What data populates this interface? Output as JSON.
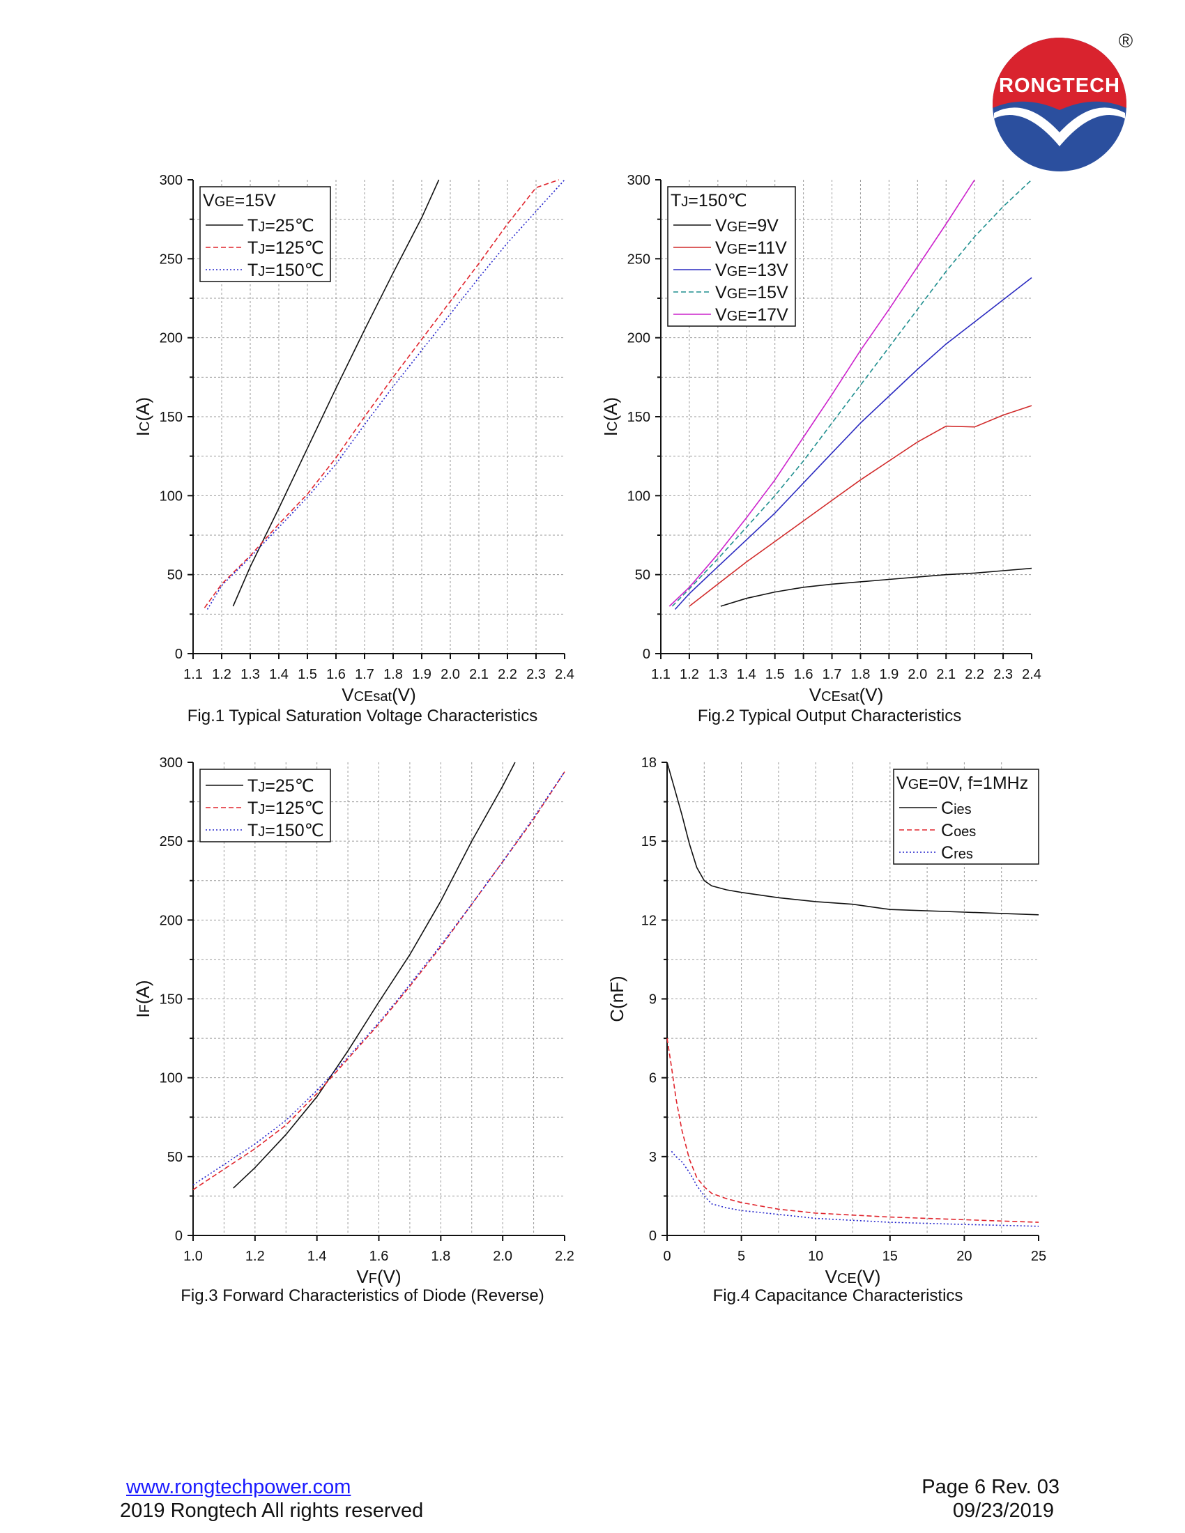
{
  "logo": {
    "text": "RONGTECH",
    "registered": "®",
    "colors": {
      "red": "#d9232e",
      "blue": "#2b4f9e"
    }
  },
  "footer": {
    "website": "www.rongtechpower.com",
    "copyright": "2019 Rongtech All rights reserved",
    "page": "Page 6  Rev. 03",
    "date": "09/23/2019"
  },
  "chart_data": [
    {
      "type": "line",
      "caption": "Fig.1 Typical Saturation Voltage Characteristics",
      "xlabel": {
        "main": "V",
        "sub": "CEsat",
        "unit": "(V)"
      },
      "ylabel": {
        "main": "I",
        "sub": "C",
        "unit": "(A)"
      },
      "xlim": [
        1.1,
        2.4
      ],
      "ylim": [
        0,
        300
      ],
      "xticks": [
        1.1,
        1.2,
        1.3,
        1.4,
        1.5,
        1.6,
        1.7,
        1.8,
        1.9,
        2.0,
        2.1,
        2.2,
        2.3,
        2.4
      ],
      "xtick_labels": [
        "1.1",
        "1.2",
        "1.3",
        "1.4",
        "1.5",
        "1.6",
        "1.7",
        "1.8",
        "1.9",
        "2.0",
        "2.1",
        "2.2",
        "2.3",
        "2.4"
      ],
      "yticks": [
        0,
        50,
        100,
        150,
        200,
        250,
        300
      ],
      "ytick_labels": [
        "0",
        "50",
        "100",
        "150",
        "200",
        "250",
        "300"
      ],
      "grid": true,
      "legend_position": "top-left",
      "legend_title": {
        "main": "V",
        "sub": "GE",
        "rest": "=15V"
      },
      "series": [
        {
          "name": "TJ=25℃",
          "label": {
            "main": "T",
            "sub": "J",
            "rest": "=25℃"
          },
          "color": "#111111",
          "dash": "solid",
          "x": [
            1.24,
            1.3,
            1.4,
            1.5,
            1.6,
            1.7,
            1.8,
            1.9,
            1.96
          ],
          "y": [
            30,
            55,
            92,
            130,
            168,
            205,
            241,
            276,
            300
          ]
        },
        {
          "name": "TJ=125℃",
          "label": {
            "main": "T",
            "sub": "J",
            "rest": "=125℃"
          },
          "color": "#e0242c",
          "dash": "dashed",
          "x": [
            1.14,
            1.2,
            1.3,
            1.4,
            1.5,
            1.6,
            1.7,
            1.8,
            1.9,
            2.0,
            2.1,
            2.2,
            2.3,
            2.38
          ],
          "y": [
            29,
            44,
            62,
            82,
            101,
            124,
            150,
            175,
            199,
            223,
            247,
            272,
            295,
            300
          ]
        },
        {
          "name": "TJ=150℃",
          "label": {
            "main": "T",
            "sub": "J",
            "rest": "=150℃"
          },
          "color": "#2222cc",
          "dash": "dotted",
          "x": [
            1.15,
            1.2,
            1.3,
            1.4,
            1.5,
            1.6,
            1.7,
            1.8,
            1.9,
            2.0,
            2.1,
            2.2,
            2.3,
            2.4
          ],
          "y": [
            28,
            43,
            61,
            80,
            99,
            120,
            145,
            169,
            192,
            215,
            238,
            260,
            280,
            300
          ]
        }
      ]
    },
    {
      "type": "line",
      "caption": "Fig.2 Typical Output Characteristics",
      "xlabel": {
        "main": "V",
        "sub": "CEsat",
        "unit": "(V)"
      },
      "ylabel": {
        "main": "I",
        "sub": "C",
        "unit": "(A)"
      },
      "xlim": [
        1.1,
        2.4
      ],
      "ylim": [
        0,
        300
      ],
      "xticks": [
        1.1,
        1.2,
        1.3,
        1.4,
        1.5,
        1.6,
        1.7,
        1.8,
        1.9,
        2.0,
        2.1,
        2.2,
        2.3,
        2.4
      ],
      "xtick_labels": [
        "1.1",
        "1.2",
        "1.3",
        "1.4",
        "1.5",
        "1.6",
        "1.7",
        "1.8",
        "1.9",
        "2.0",
        "2.1",
        "2.2",
        "2.3",
        "2.4"
      ],
      "yticks": [
        0,
        50,
        100,
        150,
        200,
        250,
        300
      ],
      "ytick_labels": [
        "0",
        "50",
        "100",
        "150",
        "200",
        "250",
        "300"
      ],
      "grid": true,
      "legend_position": "top-left",
      "legend_title": {
        "main": "T",
        "sub": "J",
        "rest": "=150℃"
      },
      "series": [
        {
          "name": "VGE=9V",
          "label": {
            "main": "V",
            "sub": "GE",
            "rest": "=9V"
          },
          "color": "#111111",
          "dash": "solid",
          "x": [
            1.31,
            1.4,
            1.5,
            1.6,
            1.7,
            1.8,
            1.9,
            2.0,
            2.1,
            2.2,
            2.3,
            2.4
          ],
          "y": [
            30,
            35,
            39,
            42,
            44,
            45.5,
            47,
            48.5,
            50,
            51,
            52.5,
            54
          ]
        },
        {
          "name": "VGE=11V",
          "label": {
            "main": "V",
            "sub": "GE",
            "rest": "=11V"
          },
          "color": "#d12a2a",
          "dash": "solid",
          "x": [
            1.2,
            1.3,
            1.4,
            1.5,
            1.6,
            1.7,
            1.8,
            1.9,
            2.0,
            2.1,
            2.2,
            2.3,
            2.4
          ],
          "y": [
            30,
            44,
            58,
            71,
            84,
            97,
            110,
            122,
            134,
            144,
            143.5,
            151,
            157
          ]
        },
        {
          "name": "VGE=13V",
          "label": {
            "main": "V",
            "sub": "GE",
            "rest": "=13V"
          },
          "color": "#2a2ac0",
          "dash": "solid",
          "x": [
            1.15,
            1.2,
            1.3,
            1.4,
            1.5,
            1.6,
            1.7,
            1.8,
            1.9,
            2.0,
            2.1,
            2.2,
            2.3,
            2.4
          ],
          "y": [
            28,
            38,
            55,
            72,
            89,
            108,
            127,
            146,
            163,
            180,
            196,
            210,
            224,
            238
          ]
        },
        {
          "name": "VGE=15V",
          "label": {
            "main": "V",
            "sub": "GE",
            "rest": "=15V"
          },
          "color": "#1f8f8f",
          "dash": "dashed",
          "x": [
            1.14,
            1.2,
            1.3,
            1.4,
            1.5,
            1.6,
            1.7,
            1.8,
            1.9,
            2.0,
            2.1,
            2.2,
            2.3,
            2.4
          ],
          "y": [
            30,
            41,
            60,
            80,
            100,
            122,
            146,
            170,
            194,
            218,
            242,
            264,
            283,
            300
          ]
        },
        {
          "name": "VGE=17V",
          "label": {
            "main": "V",
            "sub": "GE",
            "rest": "=17V"
          },
          "color": "#cc22cc",
          "dash": "solid",
          "x": [
            1.13,
            1.2,
            1.3,
            1.4,
            1.5,
            1.6,
            1.7,
            1.8,
            1.9,
            2.0,
            2.1,
            2.2
          ],
          "y": [
            30,
            42,
            63,
            86,
            110,
            137,
            164,
            192,
            218,
            245,
            272,
            300
          ]
        }
      ]
    },
    {
      "type": "line",
      "caption": "Fig.3 Forward Characteristics of Diode (Reverse)",
      "xlabel": {
        "main": "V",
        "sub": "F",
        "unit": "(V)"
      },
      "ylabel": {
        "main": "I",
        "sub": "F",
        "unit": "(A)"
      },
      "xlim": [
        1.0,
        2.2
      ],
      "ylim": [
        0,
        300
      ],
      "xticks": [
        1.0,
        1.2,
        1.4,
        1.6,
        1.8,
        2.0,
        2.2
      ],
      "xtick_labels": [
        "1.0",
        "1.2",
        "1.4",
        "1.6",
        "1.8",
        "2.0",
        "2.2"
      ],
      "xminor": [
        1.1,
        1.3,
        1.5,
        1.7,
        1.9,
        2.1
      ],
      "yticks": [
        0,
        50,
        100,
        150,
        200,
        250,
        300
      ],
      "ytick_labels": [
        "0",
        "50",
        "100",
        "150",
        "200",
        "250",
        "300"
      ],
      "grid": true,
      "legend_position": "top-left",
      "legend_title": null,
      "series": [
        {
          "name": "TJ=25℃",
          "label": {
            "main": "T",
            "sub": "J",
            "rest": "=25℃"
          },
          "color": "#111111",
          "dash": "solid",
          "x": [
            1.13,
            1.2,
            1.3,
            1.4,
            1.5,
            1.6,
            1.7,
            1.8,
            1.9,
            2.0,
            2.04
          ],
          "y": [
            30,
            43,
            64,
            88,
            117,
            148,
            178,
            212,
            250,
            285,
            300
          ]
        },
        {
          "name": "TJ=125℃",
          "label": {
            "main": "T",
            "sub": "J",
            "rest": "=125℃"
          },
          "color": "#e0242c",
          "dash": "dashed",
          "x": [
            1.0,
            1.1,
            1.2,
            1.3,
            1.4,
            1.5,
            1.6,
            1.7,
            1.8,
            1.9,
            2.0,
            2.1,
            2.2
          ],
          "y": [
            29,
            42,
            55,
            70,
            90,
            112,
            134,
            158,
            183,
            210,
            237,
            264,
            294
          ]
        },
        {
          "name": "TJ=150℃",
          "label": {
            "main": "T",
            "sub": "J",
            "rest": "=150℃"
          },
          "color": "#2222cc",
          "dash": "dotted",
          "x": [
            1.0,
            1.1,
            1.2,
            1.3,
            1.4,
            1.5,
            1.6,
            1.7,
            1.8,
            1.9,
            2.0,
            2.1,
            2.2
          ],
          "y": [
            32,
            45,
            58,
            73,
            92,
            113,
            135,
            159,
            184,
            210,
            237,
            265,
            294
          ]
        }
      ]
    },
    {
      "type": "line",
      "caption": "Fig.4 Capacitance Characteristics",
      "xlabel": {
        "main": "V",
        "sub": "CE",
        "unit": "(V)"
      },
      "ylabel": {
        "main": "C(nF)",
        "sub": "",
        "unit": ""
      },
      "xlim": [
        0,
        25
      ],
      "ylim": [
        0,
        18
      ],
      "xticks": [
        0,
        5,
        10,
        15,
        20,
        25
      ],
      "xtick_labels": [
        "0",
        "5",
        "10",
        "15",
        "20",
        "25"
      ],
      "xminor": [
        2.5,
        7.5,
        12.5,
        17.5,
        22.5
      ],
      "yticks": [
        0,
        3,
        6,
        9,
        12,
        15,
        18
      ],
      "ytick_labels": [
        "0",
        "3",
        "6",
        "9",
        "12",
        "15",
        "18"
      ],
      "yminor": [
        1.5,
        4.5,
        7.5,
        10.5,
        13.5,
        16.5
      ],
      "grid": true,
      "legend_position": "top-right",
      "legend_title": {
        "main": "V",
        "sub": "GE",
        "rest": "=0V, f=1MHz"
      },
      "series": [
        {
          "name": "Cies",
          "label": {
            "main": "C",
            "sub": "ies",
            "rest": ""
          },
          "color": "#111111",
          "dash": "solid",
          "x": [
            0,
            0.5,
            1,
            1.5,
            2,
            2.5,
            3,
            4,
            5,
            7.5,
            10,
            12.5,
            15,
            20,
            25
          ],
          "y": [
            18,
            17,
            16,
            14.9,
            14,
            13.5,
            13.3,
            13.15,
            13.05,
            12.85,
            12.7,
            12.6,
            12.4,
            12.3,
            12.2
          ]
        },
        {
          "name": "Coes",
          "label": {
            "main": "C",
            "sub": "oes",
            "rest": ""
          },
          "color": "#e0242c",
          "dash": "dashed",
          "x": [
            0,
            0.3,
            0.6,
            1,
            1.5,
            2,
            2.5,
            3,
            4,
            5,
            7.5,
            10,
            15,
            20,
            25
          ],
          "y": [
            7.5,
            6.4,
            5.2,
            4,
            2.9,
            2.2,
            1.85,
            1.6,
            1.4,
            1.25,
            1.0,
            0.85,
            0.7,
            0.6,
            0.5
          ]
        },
        {
          "name": "Cres",
          "label": {
            "main": "C",
            "sub": "res",
            "rest": ""
          },
          "color": "#2222cc",
          "dash": "dotted",
          "x": [
            0.3,
            0.6,
            1,
            1.5,
            2,
            2.5,
            3,
            4,
            5,
            7.5,
            10,
            15,
            20,
            25
          ],
          "y": [
            3.2,
            3.0,
            2.8,
            2.4,
            1.9,
            1.5,
            1.2,
            1.05,
            0.95,
            0.8,
            0.65,
            0.5,
            0.42,
            0.35
          ]
        }
      ]
    }
  ]
}
